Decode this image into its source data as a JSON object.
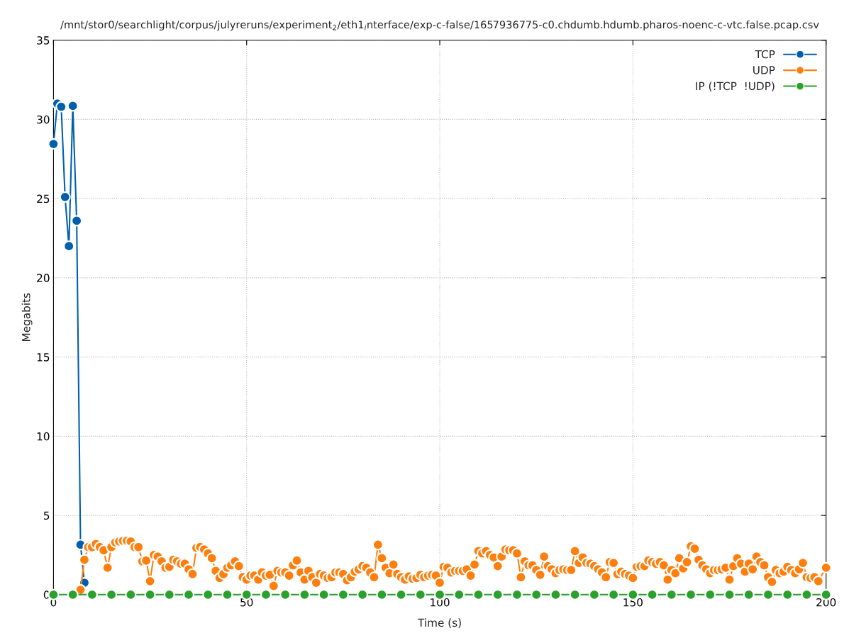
{
  "chart_data": {
    "type": "line",
    "title": "/mnt/stor0/searchlight/corpus/julyreruns/experiment$_{2}$/eth1$_{i}$nterface/exp-c-false/1657936775-c0.chdumb.hdumb.pharos-noenc-c-vtc.false.pcap.csv",
    "xlabel": "Time (s)",
    "ylabel": "Megabits",
    "xlim": [
      0,
      200
    ],
    "xticks": [
      0,
      50,
      100,
      150,
      200
    ],
    "ylim": [
      0,
      35
    ],
    "yticks": [
      0,
      5,
      10,
      15,
      20,
      25,
      30,
      35
    ],
    "grid": true,
    "legend": "top right",
    "marker": "circle",
    "line_style": "solid",
    "series": [
      {
        "name": "TCP",
        "color": "#0060ad",
        "x": [
          0,
          1,
          2,
          3,
          4,
          5,
          6,
          7,
          8
        ],
        "values": [
          28.45,
          31.0,
          30.8,
          25.1,
          22.0,
          30.85,
          23.6,
          3.15,
          0.75
        ]
      },
      {
        "name": "UDP",
        "color": "#ff7f0e",
        "x": [
          7,
          8,
          9,
          10,
          11,
          12,
          13,
          14,
          15,
          16,
          17,
          18,
          19,
          20,
          21,
          22,
          23,
          24,
          25,
          26,
          27,
          28,
          29,
          30,
          31,
          32,
          33,
          34,
          35,
          36,
          37,
          38,
          39,
          40,
          41,
          42,
          43,
          44,
          45,
          46,
          47,
          48,
          49,
          50,
          51,
          52,
          53,
          54,
          55,
          56,
          57,
          58,
          59,
          60,
          61,
          62,
          63,
          64,
          65,
          66,
          67,
          68,
          69,
          70,
          71,
          72,
          73,
          74,
          75,
          76,
          77,
          78,
          79,
          80,
          81,
          82,
          83,
          84,
          85,
          86,
          87,
          88,
          89,
          90,
          91,
          92,
          93,
          94,
          95,
          96,
          97,
          98,
          99,
          100,
          101,
          102,
          103,
          104,
          105,
          106,
          107,
          108,
          109,
          110,
          111,
          112,
          113,
          114,
          115,
          116,
          117,
          118,
          119,
          120,
          121,
          122,
          123,
          124,
          125,
          126,
          127,
          128,
          129,
          130,
          131,
          132,
          133,
          134,
          135,
          136,
          137,
          138,
          139,
          140,
          141,
          142,
          143,
          144,
          145,
          146,
          147,
          148,
          149,
          150,
          151,
          152,
          153,
          154,
          155,
          156,
          157,
          158,
          159,
          160,
          161,
          162,
          163,
          164,
          165,
          166,
          167,
          168,
          169,
          170,
          171,
          172,
          173,
          174,
          175,
          176,
          177,
          178,
          179,
          180,
          181,
          182,
          183,
          184,
          185,
          186,
          187,
          188,
          189,
          190,
          191,
          192,
          193,
          194,
          195,
          196,
          197,
          198,
          200
        ],
        "values": [
          0.3,
          2.2,
          3.0,
          3.0,
          3.2,
          3.0,
          2.8,
          1.7,
          3.0,
          3.3,
          3.35,
          3.4,
          3.4,
          3.35,
          3.0,
          3.0,
          2.1,
          2.15,
          0.85,
          2.5,
          2.4,
          2.1,
          1.7,
          1.75,
          2.2,
          2.1,
          1.95,
          1.95,
          1.6,
          1.3,
          2.95,
          3.0,
          2.85,
          2.6,
          2.3,
          1.5,
          1.05,
          1.3,
          1.7,
          1.85,
          2.1,
          1.8,
          1.1,
          0.95,
          1.2,
          1.2,
          0.95,
          1.4,
          1.2,
          1.25,
          0.55,
          1.5,
          1.4,
          1.4,
          1.2,
          1.85,
          2.15,
          1.4,
          0.95,
          1.5,
          1.1,
          0.75,
          1.3,
          1.2,
          1.05,
          1.1,
          1.4,
          1.4,
          1.3,
          0.9,
          1.1,
          1.45,
          1.6,
          1.8,
          1.7,
          1.4,
          1.1,
          3.15,
          2.3,
          1.7,
          1.35,
          1.9,
          1.3,
          1.1,
          0.95,
          1.15,
          1.0,
          1.05,
          1.25,
          1.1,
          1.2,
          1.25,
          1.2,
          0.75,
          1.75,
          1.7,
          1.4,
          1.5,
          1.5,
          1.5,
          1.6,
          1.2,
          1.9,
          2.75,
          2.6,
          2.75,
          2.5,
          2.35,
          1.8,
          2.4,
          2.85,
          2.8,
          2.8,
          2.6,
          1.1,
          2.1,
          1.85,
          1.85,
          1.55,
          1.25,
          2.4,
          1.8,
          1.6,
          1.35,
          1.55,
          1.6,
          1.55,
          1.55,
          2.75,
          2.0,
          2.35,
          2.0,
          1.95,
          1.8,
          1.6,
          1.4,
          1.1,
          2.05,
          2.0,
          1.3,
          1.45,
          1.3,
          1.2,
          1.05,
          1.75,
          1.8,
          1.8,
          2.15,
          2.05,
          1.95,
          2.05,
          1.85,
          0.95,
          1.55,
          1.35,
          2.3,
          1.65,
          2.05,
          3.05,
          2.9,
          2.2,
          1.85,
          1.6,
          1.35,
          1.55,
          1.55,
          1.6,
          1.7,
          0.95,
          1.8,
          2.3,
          1.95,
          1.45,
          1.95,
          1.6,
          2.4,
          2.05,
          1.85,
          1.1,
          0.8,
          1.55,
          1.35,
          1.45,
          1.75,
          1.55,
          1.35,
          1.6,
          2.0,
          1.1,
          1.05,
          1.1,
          0.85,
          1.7
        ]
      },
      {
        "name": "IP (!TCP  !UDP)",
        "color": "#2ca02c",
        "x": [
          0,
          5,
          10,
          15,
          20,
          25,
          30,
          35,
          40,
          45,
          50,
          55,
          60,
          65,
          70,
          75,
          80,
          85,
          90,
          95,
          100,
          105,
          110,
          115,
          120,
          125,
          130,
          135,
          140,
          145,
          150,
          155,
          160,
          165,
          170,
          175,
          180,
          185,
          190,
          195,
          200
        ],
        "values": [
          0,
          0,
          0,
          0,
          0,
          0,
          0,
          0,
          0,
          0,
          0,
          0,
          0,
          0,
          0,
          0,
          0,
          0,
          0,
          0,
          0,
          0,
          0,
          0,
          0,
          0,
          0,
          0,
          0,
          0,
          0,
          0,
          0,
          0,
          0,
          0,
          0,
          0,
          0,
          0,
          0
        ]
      }
    ]
  }
}
